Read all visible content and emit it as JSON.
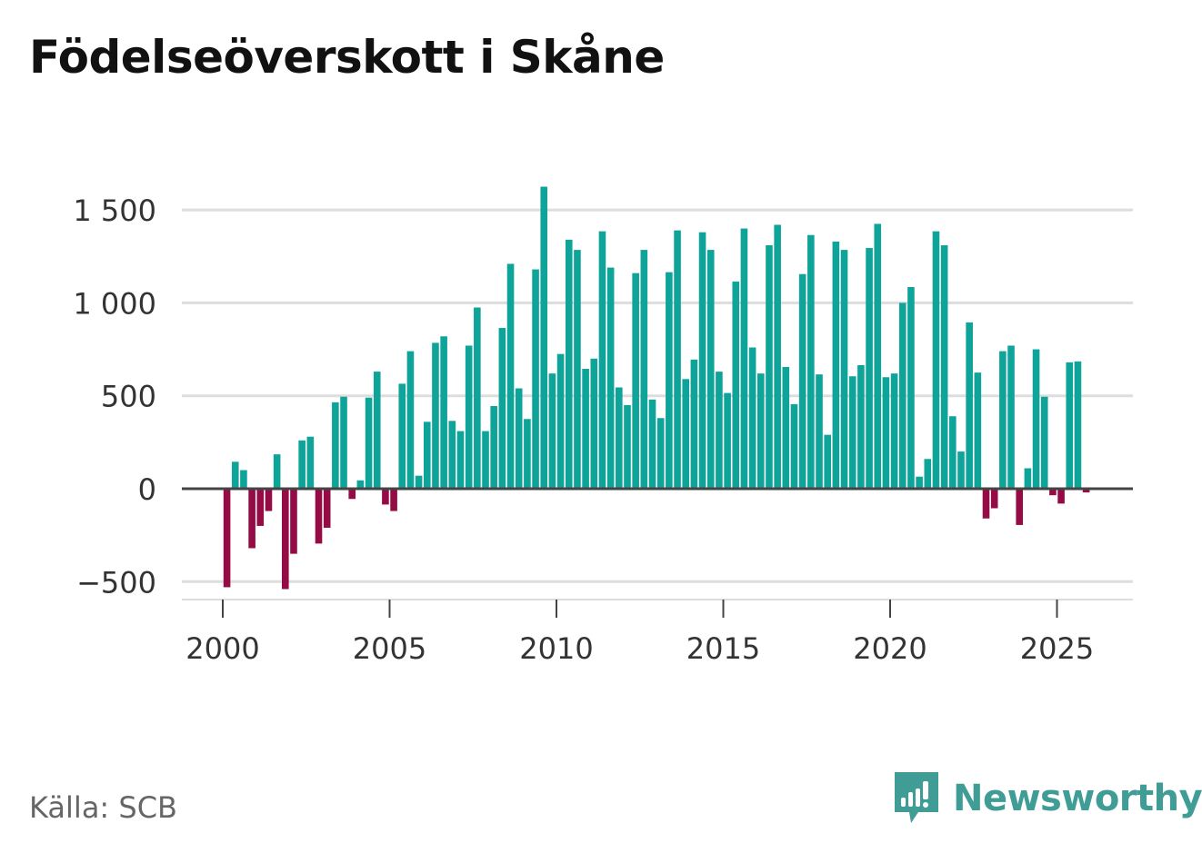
{
  "title": "Födelseöverskott i Skåne",
  "source": "Källa: SCB",
  "brand": {
    "name": "Newsworthy",
    "icon": "newsworthy-logo-icon",
    "color": "#3f9d96"
  },
  "colors": {
    "positive": "#0fa49a",
    "negative": "#940b45",
    "grid": "#dddddd",
    "zero_line": "#444444",
    "text": "#333333"
  },
  "chart_data": {
    "type": "bar",
    "title": "Födelseöverskott i Skåne",
    "xlabel": "",
    "ylabel": "",
    "ylim": [
      -650,
      1700
    ],
    "xlim": [
      1999.0,
      2027.5
    ],
    "yticks": [
      -500,
      0,
      500,
      1000,
      1500
    ],
    "ytick_labels": [
      "−500",
      "0",
      "500",
      "1 000",
      "1 500"
    ],
    "xticks": [
      2000,
      2005,
      2010,
      2015,
      2020,
      2025
    ],
    "xtick_labels": [
      "2000",
      "2005",
      "2010",
      "2015",
      "2020",
      "2025"
    ],
    "grid": true,
    "frequency": "monthly",
    "x_start": 2000.125,
    "x_step": 0.25,
    "values": [
      -530,
      145,
      100,
      -320,
      -200,
      -120,
      185,
      -540,
      -350,
      260,
      280,
      -295,
      -210,
      465,
      495,
      -55,
      45,
      490,
      630,
      -85,
      -120,
      565,
      740,
      70,
      360,
      785,
      820,
      365,
      310,
      770,
      975,
      310,
      445,
      865,
      1210,
      540,
      375,
      1180,
      1625,
      620,
      725,
      1340,
      1285,
      645,
      700,
      1385,
      1190,
      545,
      450,
      1160,
      1285,
      480,
      380,
      1165,
      1390,
      590,
      695,
      1380,
      1285,
      630,
      515,
      1115,
      1400,
      760,
      620,
      1310,
      1420,
      655,
      455,
      1155,
      1365,
      615,
      290,
      1330,
      1285,
      605,
      665,
      1295,
      1425,
      600,
      620,
      1000,
      1085,
      65,
      160,
      1385,
      1310,
      390,
      200,
      895,
      625,
      -160,
      -105,
      740,
      770,
      -195,
      110,
      750,
      495,
      -35,
      -80,
      680,
      685,
      -20
    ]
  }
}
